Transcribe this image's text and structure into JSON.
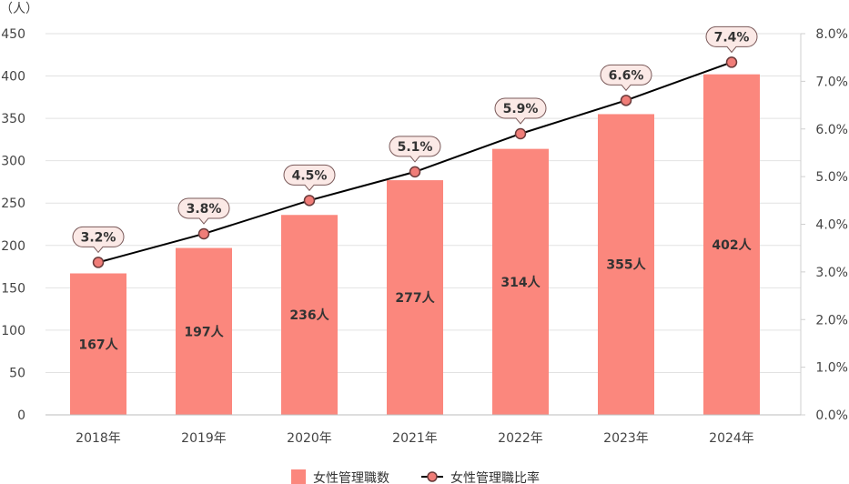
{
  "chart_data": {
    "type": "bar",
    "categories": [
      "2018年",
      "2019年",
      "2020年",
      "2021年",
      "2022年",
      "2023年",
      "2024年"
    ],
    "series": [
      {
        "name": "女性管理職数",
        "type": "bar",
        "axis": "left",
        "values": [
          167,
          197,
          236,
          277,
          314,
          355,
          402
        ],
        "labels": [
          "167人",
          "197人",
          "236人",
          "277人",
          "314人",
          "355人",
          "402人"
        ],
        "color": "#fb877d"
      },
      {
        "name": "女性管理職比率",
        "type": "line",
        "axis": "right",
        "values": [
          3.2,
          3.8,
          4.5,
          5.1,
          5.9,
          6.6,
          7.4
        ],
        "labels": [
          "3.2%",
          "3.8%",
          "4.5%",
          "5.1%",
          "5.9%",
          "6.6%",
          "7.4%"
        ],
        "color": "#000000",
        "marker_color": "#f07d78"
      }
    ],
    "y_left": {
      "unit_label": "（人）",
      "range": [
        0,
        450
      ],
      "ticks": [
        "0",
        "50",
        "100",
        "150",
        "200",
        "250",
        "300",
        "350",
        "400",
        "450"
      ]
    },
    "y_right": {
      "range": [
        0,
        8
      ],
      "ticks": [
        "0.0%",
        "1.0%",
        "2.0%",
        "3.0%",
        "4.0%",
        "5.0%",
        "6.0%",
        "7.0%",
        "8.0%"
      ]
    },
    "grid": true,
    "legend": "bottom-center"
  }
}
